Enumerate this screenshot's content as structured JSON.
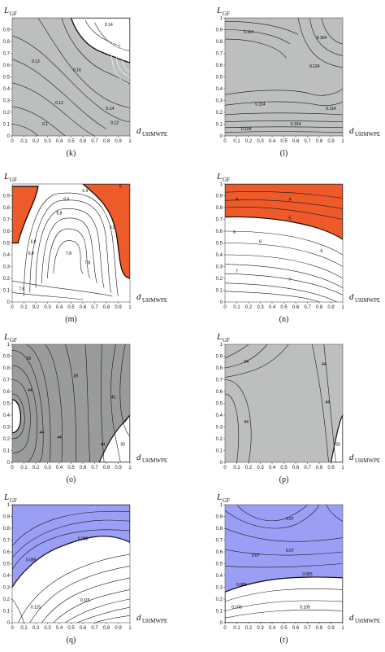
{
  "chart_data": [
    {
      "type": "contour",
      "panel": "(k)",
      "x_tick_labels": [
        "0",
        "0.1",
        "0.2",
        "0.3",
        "0.4",
        "0.5",
        "0.6",
        "0.7",
        "0.8",
        "0.9",
        "1"
      ],
      "y_tick_labels": [
        "0",
        "0.1",
        "0.2",
        "0.3",
        "0.4",
        "0.5",
        "0.6",
        "0.7",
        "0.8",
        "0.9"
      ],
      "xlabel": {
        "main": "d",
        "sub": "UHMWPE"
      },
      "ylabel": {
        "main": "L",
        "sub": "GF"
      },
      "xlim": [
        0,
        1
      ],
      "ylim": [
        0,
        1
      ],
      "fill_color": "#bcbfbe",
      "region_color": "#ffffff",
      "contour_labels": [
        "0.14",
        "0.12",
        "0.14",
        "0.12",
        "0.14",
        "0.1",
        "0.12"
      ]
    },
    {
      "type": "contour",
      "panel": "(l)",
      "x_tick_labels": [
        "0",
        "0.1",
        "0.2",
        "0.3",
        "0.4",
        "0.5",
        "0.6",
        "0.7",
        "0.8",
        "0.9",
        "1"
      ],
      "y_tick_labels": [
        "0",
        "0.1",
        "0.2",
        "0.3",
        "0.4",
        "0.5",
        "0.6",
        "0.7",
        "0.8",
        "0.9",
        "1"
      ],
      "xlabel": {
        "main": "d",
        "sub": "UHMWPE"
      },
      "ylabel": {
        "main": "L",
        "sub": "GF"
      },
      "xlim": [
        0,
        1
      ],
      "ylim": [
        0,
        1
      ],
      "fill_color": "#bcbfbe",
      "contour_labels": [
        "0.114",
        "0.104",
        "0.124",
        "0.114",
        "0.114",
        "0.104",
        "0.104"
      ]
    },
    {
      "type": "contour",
      "panel": "(m)",
      "x_tick_labels": [
        "0",
        "0.1",
        "0.2",
        "0.3",
        "0.4",
        "0.5",
        "0.6",
        "0.7",
        "0.8",
        "0.9",
        "1"
      ],
      "y_tick_labels": [
        "0",
        "0.1",
        "0.2",
        "0.3",
        "0.4",
        "0.5",
        "0.6",
        "0.7",
        "0.8",
        "0.9"
      ],
      "xlabel": {
        "main": "d",
        "sub": "UHMWPE"
      },
      "ylabel": {
        "main": "L",
        "sub": "GF"
      },
      "xlim": [
        0,
        1
      ],
      "ylim": [
        0,
        1
      ],
      "fill_color": "#ffffff",
      "region_color": "#ee5a2a",
      "contour_labels": [
        "5.9",
        "6",
        "5.9",
        "6.9",
        "6.8",
        "7.8",
        "7.8",
        "6.9",
        "6.8",
        "7.8"
      ]
    },
    {
      "type": "contour",
      "panel": "(n)",
      "x_tick_labels": [
        "0",
        "0.1",
        "0.2",
        "0.3",
        "0.4",
        "0.5",
        "0.6",
        "0.7",
        "0.8",
        "0.9",
        "1"
      ],
      "y_tick_labels": [
        "0",
        "0.1",
        "0.2",
        "0.3",
        "0.4",
        "0.5",
        "0.6",
        "0.7",
        "0.8",
        "0.9",
        "1"
      ],
      "xlabel": {
        "main": "d",
        "sub": "UHMWPE"
      },
      "ylabel": {
        "main": "L",
        "sub": "GF"
      },
      "xlim": [
        0,
        1
      ],
      "ylim": [
        0,
        1
      ],
      "fill_color": "#ffffff",
      "region_color": "#ee5a2a",
      "contour_labels": [
        "4",
        "4",
        "5",
        "6",
        "6",
        "6",
        "7",
        "7"
      ]
    },
    {
      "type": "contour",
      "panel": "(o)",
      "x_tick_labels": [
        "0",
        "0.1",
        "0.2",
        "0.3",
        "0.4",
        "0.5",
        "0.6",
        "0.7",
        "0.8",
        "0.9",
        "1"
      ],
      "y_tick_labels": [
        "0",
        "0.1",
        "0.2",
        "0.3",
        "0.4",
        "0.5",
        "0.6",
        "0.7",
        "0.8",
        "0.9",
        "1"
      ],
      "xlabel": {
        "main": "d",
        "sub": "UHMWPE"
      },
      "ylabel": {
        "main": "L",
        "sub": "GF"
      },
      "xlim": [
        0,
        1
      ],
      "ylim": [
        0,
        1
      ],
      "fill_color": "#9a9c9b",
      "region_color": "#ffffff",
      "contour_labels": [
        "39",
        "44",
        "39",
        "44",
        "41",
        "44",
        "44",
        "50"
      ]
    },
    {
      "type": "contour",
      "panel": "(p)",
      "x_tick_labels": [
        "0",
        "0.1",
        "0.2",
        "0.3",
        "0.4",
        "0.5",
        "0.6",
        "0.7",
        "0.8",
        "0.9",
        "1"
      ],
      "y_tick_labels": [
        "0",
        "0.1",
        "0.2",
        "0.3",
        "0.4",
        "0.5",
        "0.6",
        "0.7",
        "0.8",
        "0.9",
        "1"
      ],
      "xlabel": {
        "main": "d",
        "sub": "UHMWPE"
      },
      "ylabel": {
        "main": "L",
        "sub": "GF"
      },
      "xlim": [
        0,
        1
      ],
      "ylim": [
        0,
        1
      ],
      "fill_color": "#bcbfbe",
      "region_color": "#ffffff",
      "contour_labels": [
        "34",
        "44",
        "44",
        "44",
        "50"
      ]
    },
    {
      "type": "contour",
      "panel": "(q)",
      "x_tick_labels": [
        "0",
        "0.1",
        "0.2",
        "0.3",
        "0.4",
        "0.5",
        "0.6",
        "0.7",
        "0.8",
        "0.9",
        "1"
      ],
      "y_tick_labels": [
        "0",
        "0.1",
        "0.2",
        "0.3",
        "0.4",
        "0.5",
        "0.6",
        "0.7",
        "0.8",
        "0.9",
        "1"
      ],
      "xlabel": {
        "main": "d",
        "sub": "UHMWPE"
      },
      "ylabel": {
        "main": "L",
        "sub": "GF"
      },
      "xlim": [
        0,
        1
      ],
      "ylim": [
        0,
        1
      ],
      "fill_color": "#ffffff",
      "region_color": "#9b9ef5",
      "contour_labels": [
        "0.085",
        "0.085",
        "0.115",
        "0.115"
      ]
    },
    {
      "type": "contour",
      "panel": "(r)",
      "x_tick_labels": [
        "0",
        "0.1",
        "0.2",
        "0.3",
        "0.4",
        "0.5",
        "0.6",
        "0.7",
        "0.8",
        "0.9",
        "1"
      ],
      "y_tick_labels": [
        "0",
        "0.1",
        "0.2",
        "0.3",
        "0.4",
        "0.5",
        "0.6",
        "0.7",
        "0.8",
        "0.9",
        "1"
      ],
      "xlabel": {
        "main": "d",
        "sub": "UHMWPE"
      },
      "ylabel": {
        "main": "L",
        "sub": "GF"
      },
      "xlim": [
        0,
        1
      ],
      "ylim": [
        0,
        1
      ],
      "fill_color": "#9b9ef5",
      "region_color": "#ffffff",
      "contour_labels": [
        "0.07",
        "0.07",
        "0.07",
        "0.085",
        "0.085",
        "0.105",
        "0.105"
      ]
    }
  ]
}
